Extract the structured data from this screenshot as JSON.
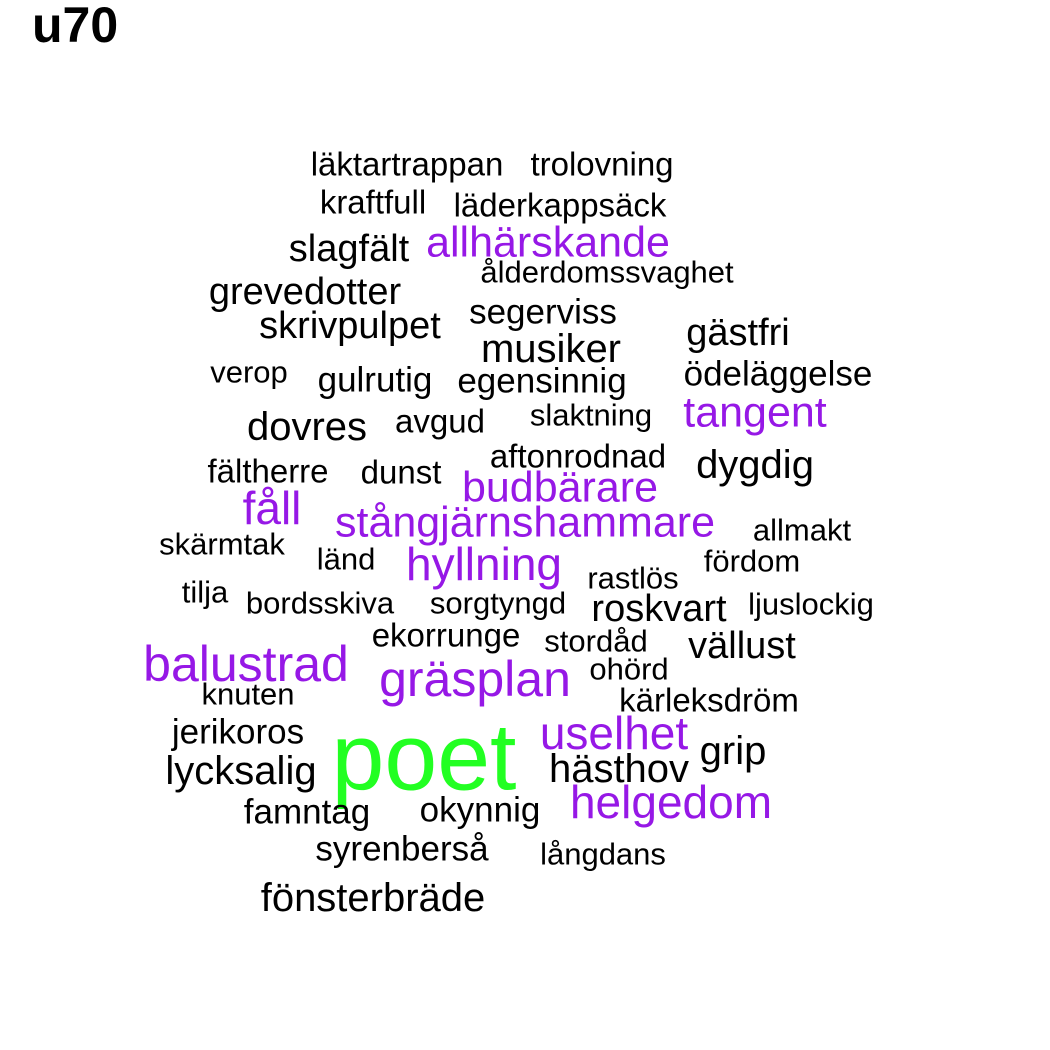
{
  "title": "u70",
  "colors": {
    "black": "#000000",
    "purple": "#9618E6",
    "green": "#22FF22"
  },
  "words": [
    {
      "text": "läktartrappan",
      "color": "black"
    },
    {
      "text": "trolovning",
      "color": "black"
    },
    {
      "text": "kraftfull",
      "color": "black"
    },
    {
      "text": "läderkappsäck",
      "color": "black"
    },
    {
      "text": "slagfält",
      "color": "black"
    },
    {
      "text": "allhärskande",
      "color": "purple"
    },
    {
      "text": "ålderdomssvaghet",
      "color": "black"
    },
    {
      "text": "grevedotter",
      "color": "black"
    },
    {
      "text": "segerviss",
      "color": "black"
    },
    {
      "text": "skrivpulpet",
      "color": "black"
    },
    {
      "text": "gästfri",
      "color": "black"
    },
    {
      "text": "musiker",
      "color": "black"
    },
    {
      "text": "verop",
      "color": "black"
    },
    {
      "text": "ödeläggelse",
      "color": "black"
    },
    {
      "text": "gulrutig",
      "color": "black"
    },
    {
      "text": "egensinnig",
      "color": "black"
    },
    {
      "text": "tangent",
      "color": "purple"
    },
    {
      "text": "slaktning",
      "color": "black"
    },
    {
      "text": "dovres",
      "color": "black"
    },
    {
      "text": "avgud",
      "color": "black"
    },
    {
      "text": "aftonrodnad",
      "color": "black"
    },
    {
      "text": "dygdig",
      "color": "black"
    },
    {
      "text": "fältherre",
      "color": "black"
    },
    {
      "text": "dunst",
      "color": "black"
    },
    {
      "text": "budbärare",
      "color": "purple"
    },
    {
      "text": "fåll",
      "color": "purple"
    },
    {
      "text": "stångjärnshammare",
      "color": "purple"
    },
    {
      "text": "allmakt",
      "color": "black"
    },
    {
      "text": "skärmtak",
      "color": "black"
    },
    {
      "text": "länd",
      "color": "black"
    },
    {
      "text": "hyllning",
      "color": "purple"
    },
    {
      "text": "fördom",
      "color": "black"
    },
    {
      "text": "rastlös",
      "color": "black"
    },
    {
      "text": "tilja",
      "color": "black"
    },
    {
      "text": "bordsskiva",
      "color": "black"
    },
    {
      "text": "sorgtyngd",
      "color": "black"
    },
    {
      "text": "roskvart",
      "color": "black"
    },
    {
      "text": "ljuslockig",
      "color": "black"
    },
    {
      "text": "ekorrunge",
      "color": "black"
    },
    {
      "text": "stordåd",
      "color": "black"
    },
    {
      "text": "vällust",
      "color": "black"
    },
    {
      "text": "balustrad",
      "color": "purple"
    },
    {
      "text": "gräsplan",
      "color": "purple"
    },
    {
      "text": "ohörd",
      "color": "black"
    },
    {
      "text": "knuten",
      "color": "black"
    },
    {
      "text": "kärleksdröm",
      "color": "black"
    },
    {
      "text": "jerikoros",
      "color": "black"
    },
    {
      "text": "poet",
      "color": "green"
    },
    {
      "text": "uselhet",
      "color": "purple"
    },
    {
      "text": "grip",
      "color": "black"
    },
    {
      "text": "lycksalig",
      "color": "black"
    },
    {
      "text": "hästhov",
      "color": "black"
    },
    {
      "text": "helgedom",
      "color": "purple"
    },
    {
      "text": "famntag",
      "color": "black"
    },
    {
      "text": "okynnig",
      "color": "black"
    },
    {
      "text": "syrenberså",
      "color": "black"
    },
    {
      "text": "långdans",
      "color": "black"
    },
    {
      "text": "fönsterbräde",
      "color": "black"
    }
  ]
}
